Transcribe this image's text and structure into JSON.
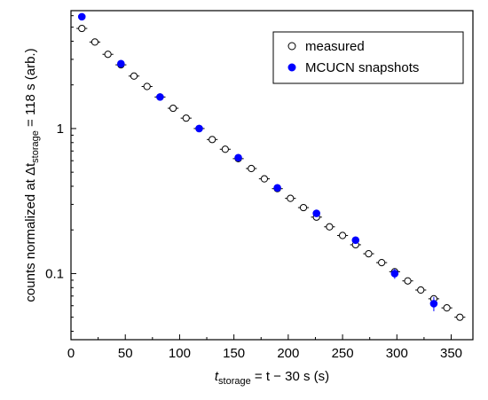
{
  "chart_data": {
    "type": "scatter",
    "xlim": [
      0,
      370
    ],
    "ylim": [
      0.035,
      6.5
    ],
    "log_y": true,
    "x_ticks": [
      0,
      50,
      100,
      150,
      200,
      250,
      300,
      350
    ],
    "x_tick_labels": [
      "0",
      "50",
      "100",
      "150",
      "200",
      "250",
      "300",
      "350"
    ],
    "y_ticks": [
      1,
      0.1
    ],
    "y_tick_labels": [
      "1",
      "0.1"
    ],
    "y_minor_ticks": [
      0.04,
      0.05,
      0.06,
      0.07,
      0.08,
      0.09,
      0.2,
      0.3,
      0.4,
      0.5,
      0.6,
      0.7,
      0.8,
      0.9,
      2,
      3,
      4,
      5,
      6
    ],
    "xlabel": {
      "t": "t",
      "storage": "storage",
      "rest": " = t − 30 s  (s)"
    },
    "ylabel": {
      "a": "counts normalized at Δt",
      "storage": "storage",
      "b": " = 118 s  (arb.)"
    },
    "grid": false,
    "legend_position": "top-right",
    "series": [
      {
        "name": "measured",
        "marker": "open-circle",
        "color": "#000000",
        "x": [
          10,
          22,
          34,
          46,
          58,
          70,
          82,
          94,
          106,
          118,
          130,
          142,
          154,
          166,
          178,
          190,
          202,
          214,
          226,
          238,
          250,
          262,
          274,
          286,
          298,
          310,
          322,
          334,
          346,
          358
        ],
        "y": [
          4.9,
          3.95,
          3.25,
          2.75,
          2.3,
          1.95,
          1.65,
          1.38,
          1.18,
          1.0,
          0.84,
          0.72,
          0.62,
          0.53,
          0.45,
          0.385,
          0.33,
          0.285,
          0.245,
          0.21,
          0.183,
          0.158,
          0.137,
          0.119,
          0.103,
          0.089,
          0.077,
          0.067,
          0.058,
          0.05
        ],
        "xerr": 5
      },
      {
        "name": "MCUCN snapshots",
        "marker": "filled-circle",
        "color": "#0000ff",
        "x": [
          10,
          46,
          82,
          118,
          154,
          190,
          226,
          262,
          298,
          334
        ],
        "y": [
          5.9,
          2.8,
          1.65,
          1.0,
          0.63,
          0.39,
          0.26,
          0.17,
          0.1,
          0.062
        ],
        "yerr_low": [
          0.2,
          0.08,
          0.04,
          0.02,
          0.015,
          0.01,
          0.008,
          0.007,
          0.008,
          0.007
        ],
        "yerr_high": [
          0.2,
          0.08,
          0.04,
          0.02,
          0.015,
          0.01,
          0.008,
          0.007,
          0.008,
          0.007
        ]
      }
    ]
  }
}
